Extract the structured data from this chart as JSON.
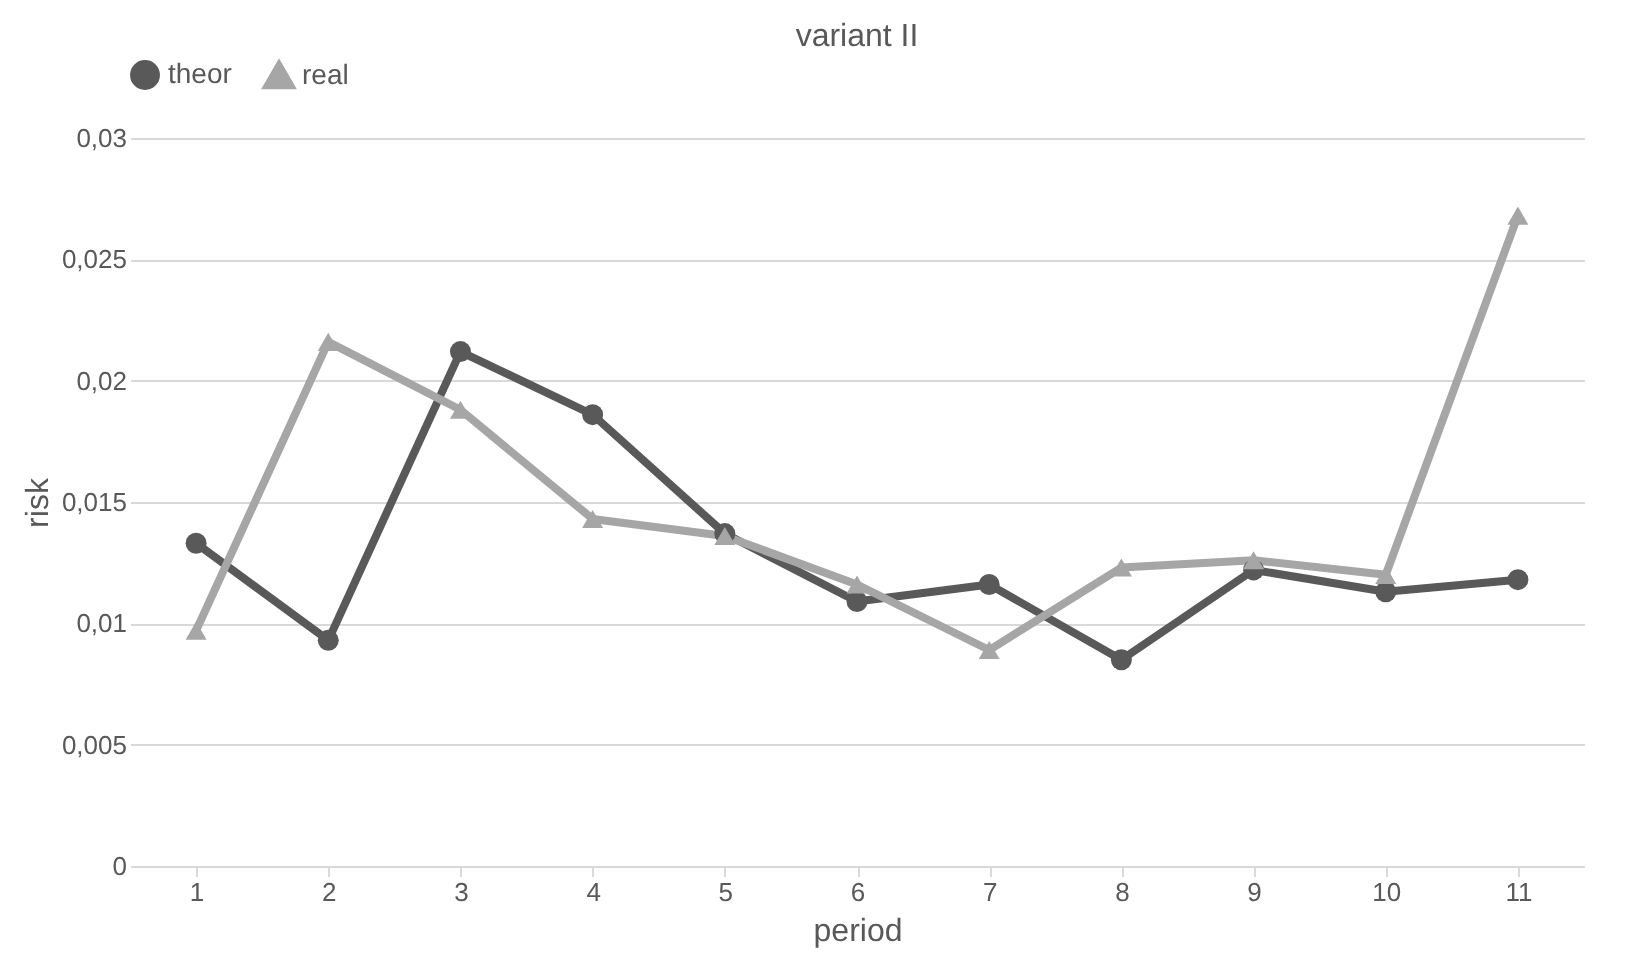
{
  "chart_data": {
    "type": "line",
    "title": "variant II",
    "xlabel": "period",
    "ylabel": "risk",
    "categories": [
      "1",
      "2",
      "3",
      "4",
      "5",
      "6",
      "7",
      "8",
      "9",
      "10",
      "11"
    ],
    "series": [
      {
        "name": "theor",
        "color": "#595959",
        "marker": "circle",
        "values": [
          0.0133,
          0.0093,
          0.0212,
          0.0186,
          0.0137,
          0.0109,
          0.0116,
          0.0085,
          0.0122,
          0.0113,
          0.0118
        ]
      },
      {
        "name": "real",
        "color": "#a6a6a6",
        "marker": "triangle",
        "values": [
          0.0097,
          0.0216,
          0.0188,
          0.0143,
          0.0136,
          0.0116,
          0.0089,
          0.0123,
          0.0126,
          0.012,
          0.0268
        ]
      }
    ],
    "ylim": [
      0,
      0.03
    ],
    "yticks": [
      {
        "value": 0,
        "label": "0"
      },
      {
        "value": 0.005,
        "label": "0,005"
      },
      {
        "value": 0.01,
        "label": "0,01"
      },
      {
        "value": 0.015,
        "label": "0,015"
      },
      {
        "value": 0.02,
        "label": "0,02"
      },
      {
        "value": 0.025,
        "label": "0,025"
      },
      {
        "value": 0.03,
        "label": "0,03"
      }
    ],
    "grid": "y",
    "legend": "top",
    "line_style": "solid"
  }
}
